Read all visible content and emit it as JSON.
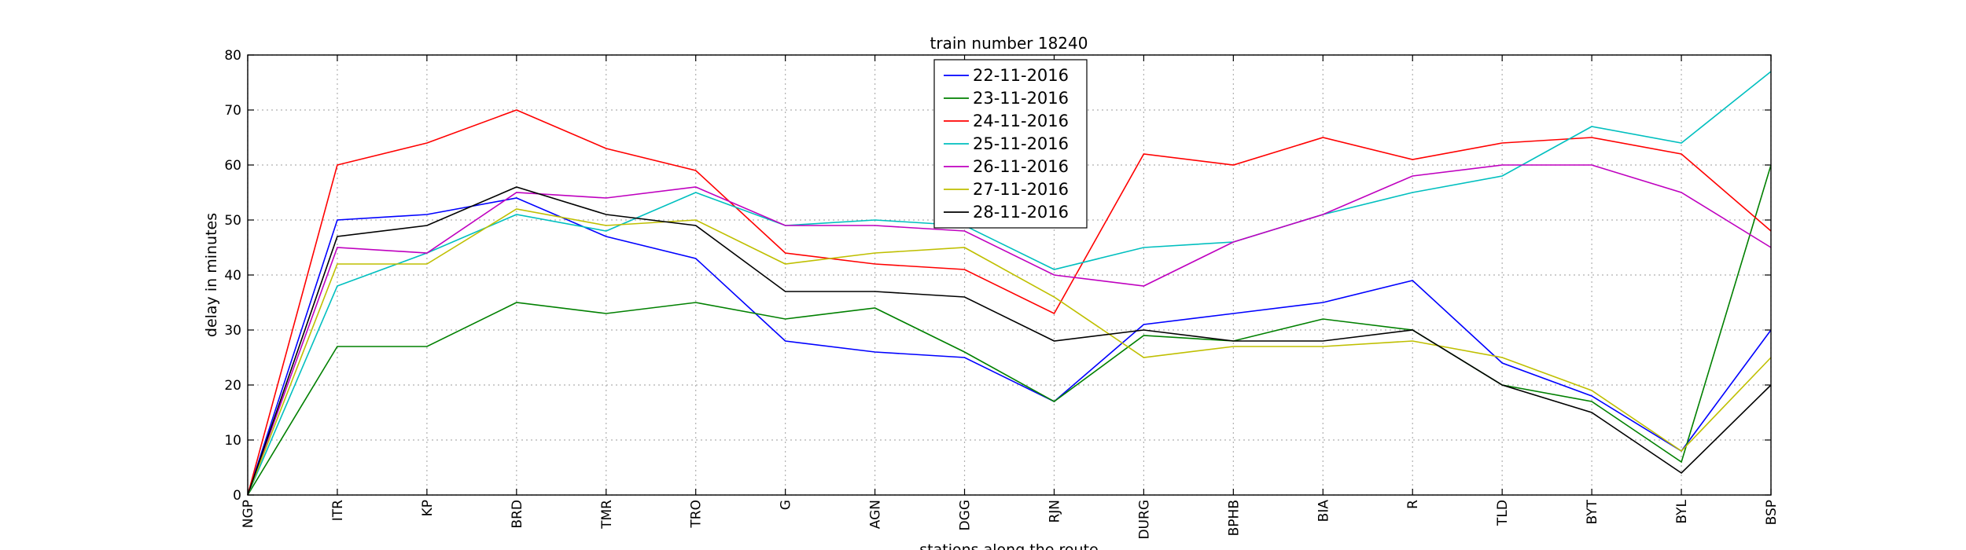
{
  "chart_data": {
    "type": "line",
    "title": "train number 18240",
    "xlabel": "stations along the route",
    "ylabel": "delay in minutes",
    "ylim": [
      0,
      80
    ],
    "yticks": [
      0,
      10,
      20,
      30,
      40,
      50,
      60,
      70,
      80
    ],
    "grid": true,
    "legend_position": "top-center",
    "categories": [
      "NGP",
      "ITR",
      "KP",
      "BRD",
      "TMR",
      "TRO",
      "G",
      "AGN",
      "DGG",
      "RJN",
      "DURG",
      "BPHB",
      "BIA",
      "R",
      "TLD",
      "BYT",
      "BYL",
      "BSP"
    ],
    "series": [
      {
        "name": "22-11-2016",
        "color": "#0000ff",
        "values": [
          0,
          50,
          51,
          54,
          47,
          43,
          28,
          26,
          25,
          17,
          31,
          33,
          35,
          39,
          24,
          18,
          8,
          30
        ]
      },
      {
        "name": "23-11-2016",
        "color": "#008000",
        "values": [
          0,
          27,
          27,
          35,
          33,
          35,
          32,
          34,
          26,
          17,
          29,
          28,
          32,
          30,
          20,
          17,
          6,
          60
        ]
      },
      {
        "name": "24-11-2016",
        "color": "#ff0000",
        "values": [
          0,
          60,
          64,
          70,
          63,
          59,
          44,
          42,
          41,
          33,
          62,
          60,
          65,
          61,
          64,
          65,
          62,
          48
        ]
      },
      {
        "name": "25-11-2016",
        "color": "#00bfbf",
        "values": [
          0,
          38,
          44,
          51,
          48,
          55,
          49,
          50,
          49,
          41,
          45,
          46,
          51,
          55,
          58,
          67,
          64,
          77
        ]
      },
      {
        "name": "26-11-2016",
        "color": "#bf00bf",
        "values": [
          0,
          45,
          44,
          55,
          54,
          56,
          49,
          49,
          48,
          40,
          38,
          46,
          51,
          58,
          60,
          60,
          55,
          45
        ]
      },
      {
        "name": "27-11-2016",
        "color": "#bfbf00",
        "values": [
          0,
          42,
          42,
          52,
          49,
          50,
          42,
          44,
          45,
          36,
          25,
          27,
          27,
          28,
          25,
          19,
          8,
          25
        ]
      },
      {
        "name": "28-11-2016",
        "color": "#000000",
        "values": [
          0,
          47,
          49,
          56,
          51,
          49,
          37,
          37,
          36,
          28,
          30,
          28,
          28,
          30,
          20,
          15,
          4,
          20
        ]
      }
    ]
  }
}
